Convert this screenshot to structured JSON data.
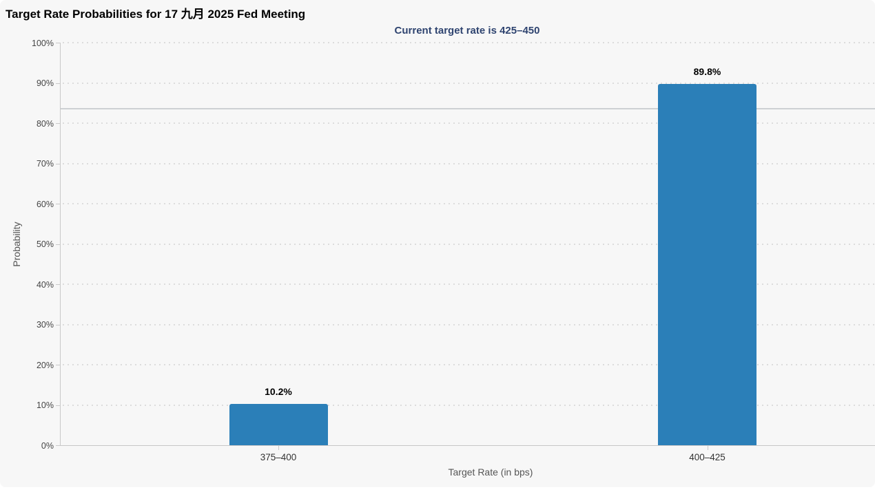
{
  "header": {
    "title": "Target Rate Probabilities for 17 九月 2025 Fed Meeting",
    "subtitle": "Current target rate is 425–450"
  },
  "chart_data": {
    "type": "bar",
    "title": "Target Rate Probabilities for 17 九月 2025 Fed Meeting",
    "subtitle": "Current target rate is 425–450",
    "categories": [
      "375–400",
      "400–425"
    ],
    "values": [
      10.2,
      89.8
    ],
    "value_labels": [
      "10.2%",
      "89.8%"
    ],
    "xlabel": "Target Rate (in bps)",
    "ylabel": "Probability",
    "ylim": [
      0,
      100
    ],
    "ytick_values": [
      0,
      10,
      20,
      30,
      40,
      50,
      60,
      70,
      80,
      90,
      100
    ],
    "ytick_labels": [
      "0%",
      "10%",
      "20%",
      "30%",
      "40%",
      "50%",
      "60%",
      "70%",
      "80%",
      "90%",
      "100%"
    ],
    "grid": "dotted-horizontal",
    "legend": "none",
    "reference_line": {
      "y": 83.6
    },
    "colors": {
      "bar": "#2b7fb8",
      "subtitle": "#2f4470",
      "background": "#f7f7f7",
      "gridline": "#dcdcdc",
      "axis": "#c9c9c9"
    }
  }
}
